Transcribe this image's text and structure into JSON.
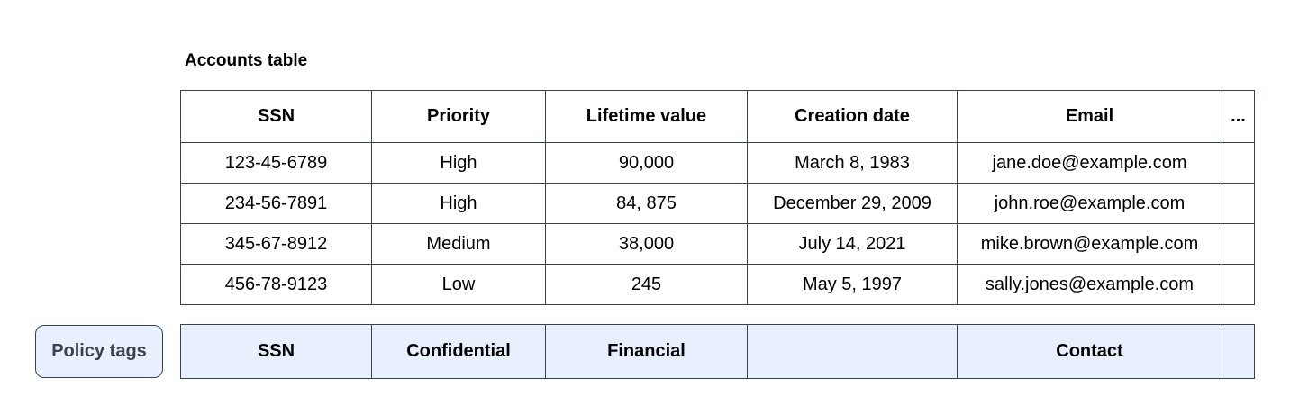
{
  "title": "Accounts table",
  "colors": {
    "border": "#39424e",
    "policy_bg": "#e8f0fe",
    "text": "#000000",
    "policy_button_text": "#39424e"
  },
  "table": {
    "columns": [
      "SSN",
      "Priority",
      "Lifetime value",
      "Creation date",
      "Email",
      "..."
    ],
    "rows": [
      [
        "123-45-6789",
        "High",
        "90,000",
        "March 8, 1983",
        "jane.doe@example.com",
        ""
      ],
      [
        "234-56-7891",
        "High",
        "84, 875",
        "December 29, 2009",
        "john.roe@example.com",
        ""
      ],
      [
        "345-67-8912",
        "Medium",
        "38,000",
        "July 14, 2021",
        "mike.brown@example.com",
        ""
      ],
      [
        "456-78-9123",
        "Low",
        "245",
        "May 5, 1997",
        "sally.jones@example.com",
        ""
      ]
    ]
  },
  "policy": {
    "button_label": "Policy tags",
    "tags": [
      "SSN",
      "Confidential",
      "Financial",
      "",
      "Contact",
      ""
    ]
  }
}
